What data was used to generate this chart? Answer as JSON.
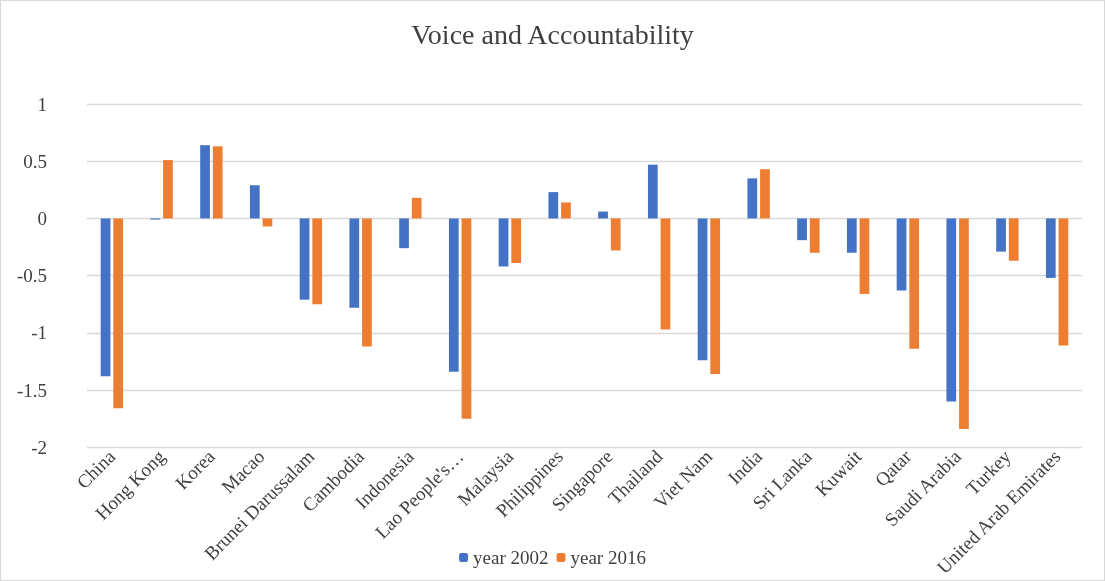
{
  "chart_data": {
    "type": "bar",
    "title": "Voice and Accountability",
    "categories": [
      "China",
      "Hong Kong",
      "Korea",
      "Macao",
      "Brunei Darussalam",
      "Cambodia",
      "Indonesia",
      "Lao People's…",
      "Malaysia",
      "Philippines",
      "Singapore",
      "Thailand",
      "Viet Nam",
      "India",
      "Sri Lanka",
      "Kuwait",
      "Qatar",
      "Saudi Arabia",
      "Turkey",
      "United Arab Emirates"
    ],
    "series": [
      {
        "name": "year 2002",
        "color": "#4472c4",
        "values": [
          -1.38,
          -0.01,
          0.64,
          0.29,
          -0.71,
          -0.78,
          -0.26,
          -1.34,
          -0.42,
          0.23,
          0.06,
          0.47,
          -1.24,
          0.35,
          -0.19,
          -0.3,
          -0.63,
          -1.6,
          -0.29,
          -0.52
        ]
      },
      {
        "name": "year 2016",
        "color": "#ed7d31",
        "values": [
          -1.66,
          0.51,
          0.63,
          -0.07,
          -0.75,
          -1.12,
          0.18,
          -1.75,
          -0.39,
          0.14,
          -0.28,
          -0.97,
          -1.36,
          0.43,
          -0.3,
          -0.66,
          -1.14,
          -1.84,
          -0.37,
          -1.11
        ]
      }
    ],
    "ylim": [
      -2,
      1
    ],
    "yticks": [
      -2,
      -1.5,
      -1,
      -0.5,
      0,
      0.5,
      1
    ],
    "grid": "y",
    "legend": "bottom"
  }
}
